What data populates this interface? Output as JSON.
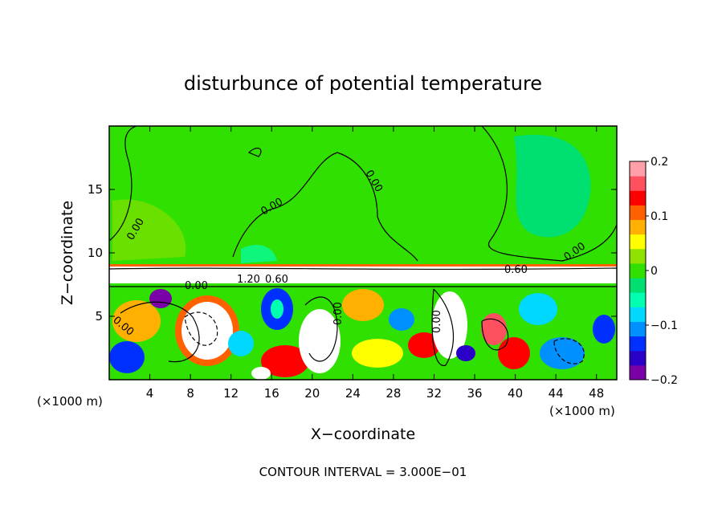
{
  "chart_data": {
    "type": "heatmap",
    "title": "disturbunce of potential temperature",
    "xlabel": "X−coordinate",
    "ylabel": "Z−coordinate",
    "x_unit_left": "(×1000 m)",
    "x_unit_right": "(×1000 m)",
    "xlim": [
      0,
      50
    ],
    "ylim": [
      0,
      20
    ],
    "xticks": [
      4,
      8,
      12,
      16,
      20,
      24,
      28,
      32,
      36,
      40,
      44,
      48
    ],
    "yticks": [
      5,
      10,
      15
    ],
    "colorbar": {
      "vmin": -0.2,
      "vmax": 0.2,
      "tick_labels": [
        "0.2",
        "0.1",
        "0",
        "−0.1",
        "−0.2"
      ],
      "tick_values": [
        0.2,
        0.1,
        0,
        -0.1,
        -0.2
      ],
      "colors": [
        "#7a00a8",
        "#2a00c8",
        "#0030ff",
        "#0090ff",
        "#00d8ff",
        "#00ffb0",
        "#00e070",
        "#30e000",
        "#90e000",
        "#ffff00",
        "#ffb000",
        "#ff6000",
        "#ff0000",
        "#ff5060",
        "#ffa0a8"
      ]
    },
    "contour_interval_text": "CONTOUR INTERVAL = 3.000E−01",
    "contour_labels": [
      "0.00",
      "0.00",
      "0.00",
      "0.00",
      "0.00",
      "0.00",
      "0.00",
      "0.60",
      "0.60",
      "1.20",
      "0.00"
    ]
  }
}
